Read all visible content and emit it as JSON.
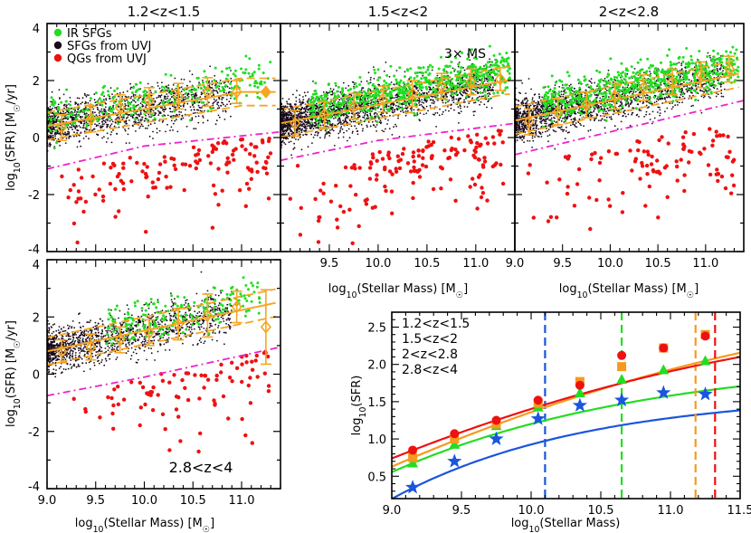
{
  "chart_data": [
    {
      "type": "scatter",
      "id": "p1",
      "title": "1.2<z<1.5",
      "xlabel": "",
      "ylabel": "log10(SFR) [M☉/yr]",
      "xlim": [
        9.0,
        11.4
      ],
      "ylim": [
        -4.0,
        4.0
      ],
      "yticks": [
        4,
        2,
        0,
        -2,
        -4
      ],
      "xticks": [],
      "legend": {
        "position": "top-left",
        "entries": [
          {
            "label": "IR SFGs",
            "color": "#22dd22"
          },
          {
            "label": "SFGs from UVJ",
            "color": "#1a0a1a"
          },
          {
            "label": "QGs from UVJ",
            "color": "#ee1111"
          }
        ]
      },
      "ms_fit": {
        "slope": 0.6,
        "intercept": 0.4,
        "turnover": 10.3,
        "plateau": 1.6
      },
      "qg_line": [
        [
          9.0,
          -1.1
        ],
        [
          10.0,
          -0.3
        ],
        [
          11.4,
          0.2
        ]
      ],
      "binned_means": [
        {
          "x": 9.15,
          "y": 0.35,
          "err": 0.45
        },
        {
          "x": 9.45,
          "y": 0.65,
          "err": 0.45
        },
        {
          "x": 9.75,
          "y": 1.05,
          "err": 0.45
        },
        {
          "x": 10.05,
          "y": 1.3,
          "err": 0.45
        },
        {
          "x": 10.35,
          "y": 1.45,
          "err": 0.45
        },
        {
          "x": 10.65,
          "y": 1.6,
          "err": 0.5
        },
        {
          "x": 10.95,
          "y": 1.6,
          "err": 0.4
        },
        {
          "x": 11.25,
          "y": 1.6,
          "err": 0.0
        }
      ]
    },
    {
      "type": "scatter",
      "id": "p2",
      "title": "1.5<z<2",
      "annotation": "3× MS",
      "xlim": [
        9.0,
        11.4
      ],
      "ylim": [
        -4.0,
        4.0
      ],
      "ms_fit": {
        "slope": 0.65,
        "intercept": 0.5,
        "turnover": 10.6,
        "plateau": 2.0
      },
      "qg_line": [
        [
          9.0,
          -0.8
        ],
        [
          10.0,
          -0.1
        ],
        [
          11.4,
          0.5
        ]
      ],
      "binned_means": [
        {
          "x": 9.15,
          "y": 0.5,
          "err": 0.45
        },
        {
          "x": 9.45,
          "y": 0.8,
          "err": 0.45
        },
        {
          "x": 9.75,
          "y": 1.1,
          "err": 0.45
        },
        {
          "x": 10.05,
          "y": 1.35,
          "err": 0.45
        },
        {
          "x": 10.35,
          "y": 1.55,
          "err": 0.45
        },
        {
          "x": 10.65,
          "y": 1.8,
          "err": 0.45
        },
        {
          "x": 10.95,
          "y": 1.95,
          "err": 0.45
        },
        {
          "x": 11.25,
          "y": 2.05,
          "err": 0.4
        }
      ]
    },
    {
      "type": "scatter",
      "id": "p3",
      "title": "2<z<2.8",
      "xlabel": "log10(Stellar Mass) [M☉]",
      "xlim": [
        9.0,
        11.4
      ],
      "ylim": [
        -4.0,
        4.0
      ],
      "xticks": [
        9.0,
        9.5,
        10.0,
        10.5,
        11.0
      ],
      "ms_fit": {
        "slope": 0.7,
        "intercept": 0.6,
        "turnover": 11.0,
        "plateau": 2.4
      },
      "qg_line": [
        [
          9.0,
          -0.6
        ],
        [
          10.0,
          0.2
        ],
        [
          11.4,
          1.3
        ]
      ],
      "binned_means": [
        {
          "x": 9.15,
          "y": 0.55,
          "err": 0.45
        },
        {
          "x": 9.45,
          "y": 0.9,
          "err": 0.45
        },
        {
          "x": 9.75,
          "y": 1.15,
          "err": 0.45
        },
        {
          "x": 10.05,
          "y": 1.45,
          "err": 0.45
        },
        {
          "x": 10.35,
          "y": 1.75,
          "err": 0.45
        },
        {
          "x": 10.65,
          "y": 1.95,
          "err": 0.45
        },
        {
          "x": 10.95,
          "y": 2.2,
          "err": 0.45
        },
        {
          "x": 11.25,
          "y": 2.4,
          "err": 0.45
        }
      ]
    },
    {
      "type": "scatter",
      "id": "p2x",
      "xlabel": "log10(Stellar Mass) [M☉]",
      "xticks": [
        9.5,
        10.0,
        10.5,
        11.0
      ]
    },
    {
      "type": "scatter",
      "id": "p4",
      "title": "2.8<z<4",
      "xlabel": "log10(Stellar Mass) [M☉]",
      "ylabel": "log10(SFR) [M☉/yr]",
      "xlim": [
        9.0,
        11.4
      ],
      "ylim": [
        -4.0,
        4.0
      ],
      "yticks": [
        4,
        2,
        0,
        -2,
        -4
      ],
      "xticks": [
        9.0,
        9.5,
        10.0,
        10.5,
        11.0
      ],
      "ms_fit": {
        "slope": 0.72,
        "intercept": 0.8,
        "turnover": 99,
        "plateau": 99
      },
      "qg_line": [
        [
          9.0,
          -0.75
        ],
        [
          10.0,
          -0.1
        ],
        [
          11.4,
          0.95
        ]
      ],
      "binned_means": [
        {
          "x": 9.15,
          "y": 0.8,
          "err": 0.4
        },
        {
          "x": 9.45,
          "y": 0.95,
          "err": 0.45
        },
        {
          "x": 9.75,
          "y": 1.2,
          "err": 0.45
        },
        {
          "x": 10.05,
          "y": 1.45,
          "err": 0.45
        },
        {
          "x": 10.35,
          "y": 1.75,
          "err": 0.55
        },
        {
          "x": 10.65,
          "y": 2.05,
          "err": 0.75
        },
        {
          "x": 10.95,
          "y": 2.35,
          "err": 0.55
        },
        {
          "x": 11.25,
          "y": 1.65,
          "err": 1.3
        }
      ]
    },
    {
      "type": "line",
      "id": "p5",
      "xlabel": "log10(Stellar Mass)",
      "ylabel": "log10(SFR)",
      "xlim": [
        9.0,
        11.5
      ],
      "ylim": [
        0.2,
        2.7
      ],
      "xticks": [
        9.0,
        9.5,
        10.0,
        10.5,
        11.0,
        11.5
      ],
      "yticks": [
        0.5,
        1.0,
        1.5,
        2.0,
        2.5
      ],
      "series": [
        {
          "name": "1.2<z<1.5",
          "color": "#1a55dd",
          "marker": "star",
          "x": [
            9.15,
            9.45,
            9.75,
            10.05,
            10.35,
            10.65,
            10.95,
            11.25
          ],
          "y": [
            0.35,
            0.7,
            1.0,
            1.27,
            1.45,
            1.52,
            1.62,
            1.6
          ],
          "cutoff": 10.1,
          "fit_plateau": 1.62,
          "fit_turn": 10.5
        },
        {
          "name": "1.5<z<2",
          "color": "#22dd22",
          "marker": "triangle",
          "x": [
            9.15,
            9.45,
            9.75,
            10.05,
            10.35,
            10.65,
            10.95,
            11.25
          ],
          "y": [
            0.68,
            0.93,
            1.18,
            1.43,
            1.62,
            1.8,
            1.93,
            2.05
          ],
          "cutoff": 10.65,
          "fit_plateau": 2.12,
          "fit_turn": 11.1
        },
        {
          "name": "2<z<2.8",
          "color": "#f59a1e",
          "marker": "square",
          "x": [
            9.15,
            9.45,
            9.75,
            10.05,
            10.35,
            10.65,
            10.95,
            11.25
          ],
          "y": [
            0.75,
            1.0,
            1.2,
            1.48,
            1.77,
            1.97,
            2.22,
            2.4
          ],
          "cutoff": 11.18,
          "fit_plateau": 99,
          "fit_turn": 99
        },
        {
          "name": "2.8<z<4",
          "color": "#ee1111",
          "marker": "circle",
          "x": [
            9.15,
            9.45,
            9.75,
            10.05,
            10.35,
            10.65,
            10.95,
            11.25
          ],
          "y": [
            0.85,
            1.07,
            1.25,
            1.52,
            1.72,
            2.12,
            2.22,
            2.38
          ],
          "cutoff": 11.32,
          "fit_plateau": 99,
          "fit_turn": 99
        }
      ]
    }
  ],
  "labels": {
    "ylabel": "log10(SFR) [M☉/yr]",
    "xlabel": "log10(Stellar Mass) [M☉]",
    "ms_annotation": "3× MS",
    "p5_xlabel": "log10(Stellar Mass)",
    "p5_ylabel": "log10(SFR)"
  }
}
